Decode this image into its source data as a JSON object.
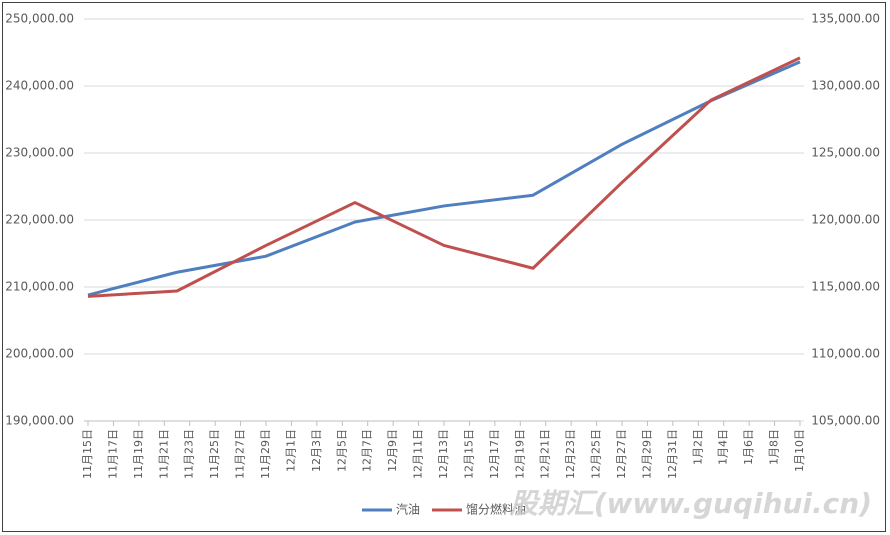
{
  "chart_data": {
    "type": "line",
    "categories": [
      "11月15日",
      "11月17日",
      "11月19日",
      "11月21日",
      "11月23日",
      "11月25日",
      "11月27日",
      "11月29日",
      "12月1日",
      "12月3日",
      "12月5日",
      "12月7日",
      "12月9日",
      "12月11日",
      "12月13日",
      "12月15日",
      "12月17日",
      "12月19日",
      "12月21日",
      "12月23日",
      "12月25日",
      "12月27日",
      "12月29日",
      "12月31日",
      "1月2日",
      "1月4日",
      "1月6日",
      "1月8日",
      "1月10日"
    ],
    "x": [
      "11月15日",
      "11月22日",
      "11月29日",
      "12月6日",
      "12月13日",
      "12月20日",
      "12月27日",
      "1月3日",
      "1月10日"
    ],
    "series": [
      {
        "name": "汽油",
        "color": "#4f7fbf",
        "values": [
          208800,
          212200,
          214600,
          219700,
          222100,
          223700,
          231300,
          237800,
          243600
        ]
      },
      {
        "name": "馏分燃料油",
        "color": "#c0504d",
        "axis": "y2",
        "values": [
          114300,
          114700,
          118100,
          121300,
          118100,
          116400,
          122800,
          128950,
          132100
        ]
      }
    ],
    "ylim": [
      190000,
      250000
    ],
    "yticks": [
      {
        "value": 190000,
        "label": "190,000.00"
      },
      {
        "value": 200000,
        "label": "200,000.00"
      },
      {
        "value": 210000,
        "label": "210,000.00"
      },
      {
        "value": 220000,
        "label": "220,000.00"
      },
      {
        "value": 230000,
        "label": "230,000.00"
      },
      {
        "value": 240000,
        "label": "240,000.00"
      },
      {
        "value": 250000,
        "label": "250,000.00"
      }
    ],
    "y2lim": [
      105000,
      135000
    ],
    "y2ticks": [
      {
        "value": 105000,
        "label": "105,000.00"
      },
      {
        "value": 110000,
        "label": "110,000.00"
      },
      {
        "value": 115000,
        "label": "115,000.00"
      },
      {
        "value": 120000,
        "label": "120,000.00"
      },
      {
        "value": 125000,
        "label": "125,000.00"
      },
      {
        "value": 130000,
        "label": "130,000.00"
      },
      {
        "value": 135000,
        "label": "135,000.00"
      }
    ],
    "grid": true,
    "legend": "bottom",
    "watermark": "股期汇(www.guqihui.cn)"
  }
}
